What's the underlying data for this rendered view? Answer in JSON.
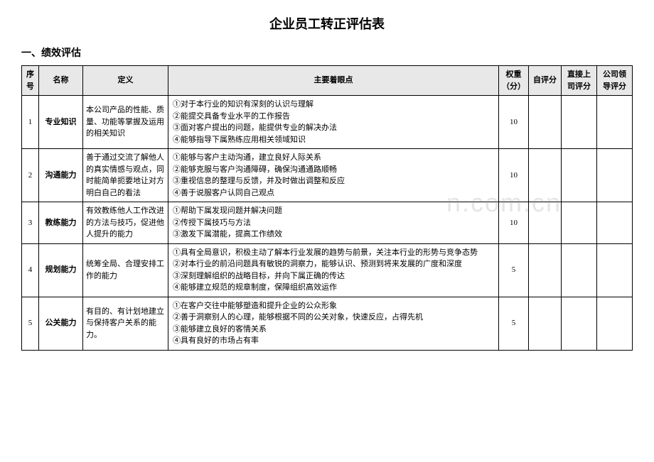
{
  "doc": {
    "title": "企业员工转正评估表",
    "section": "一、绩效评估",
    "watermark": "n.com.cn"
  },
  "table": {
    "headers": {
      "index": "序号",
      "name": "名称",
      "def": "定义",
      "points": "主要着眼点",
      "weight": "权重（分）",
      "self": "自评分",
      "supervisor": "直接上司评分",
      "leader": "公司领导评分"
    },
    "rows": [
      {
        "index": "1",
        "name": "专业知识",
        "def": "本公司产品的性能、质量、功能等掌握及运用的相关知识",
        "points": "①对于本行业的知识有深刻的认识与理解\n②能提交具备专业水平的工作报告\n③面对客户提出的问题，能提供专业的解决办法\n④能够指导下属熟练应用相关领域知识",
        "weight": "10"
      },
      {
        "index": "2",
        "name": "沟通能力",
        "def": "善于通过交流了解他人的真实情感与观点，同时能简单扼要地让对方明白自己的看法",
        "points": "①能够与客户主动沟通，建立良好人际关系\n②能够克服与客户沟通障碍，确保沟通通路顺畅\n③重视信息的整理与反馈，并及时做出调整和反应\n④善于说服客户认同自己观点",
        "weight": "10"
      },
      {
        "index": "3",
        "name": "教练能力",
        "def": "有效教练他人工作改进的方法与技巧，促进他人提升的能力",
        "points": "①帮助下属发现问题并解决问题\n②传授下属技巧与方法\n③激发下属潜能，提高工作绩效",
        "weight": "10"
      },
      {
        "index": "4",
        "name": "规划能力",
        "def": "统筹全局、合理安排工作的能力",
        "points": "①具有全局意识，积极主动了解本行业发展的趋势与前景，关注本行业的形势与竞争态势\n②对本行业的前沿问题具有敏锐的洞察力，能够认识、预测到将来发展的广度和深度\n③深刻理解组织的战略目标，并向下属正确的传达\n④能够建立规范的规章制度，保障组织高效运作",
        "weight": "5"
      },
      {
        "index": "5",
        "name": "公关能力",
        "def": "有目的、有计划地建立与保持客户关系的能力。",
        "points": "①在客户交往中能够塑造和提升企业的公众形象\n②善于洞察别人的心理，能够根据不同的公关对象，快速反应，占得先机\n③能够建立良好的客情关系\n④具有良好的市场占有率",
        "weight": "5"
      }
    ]
  }
}
